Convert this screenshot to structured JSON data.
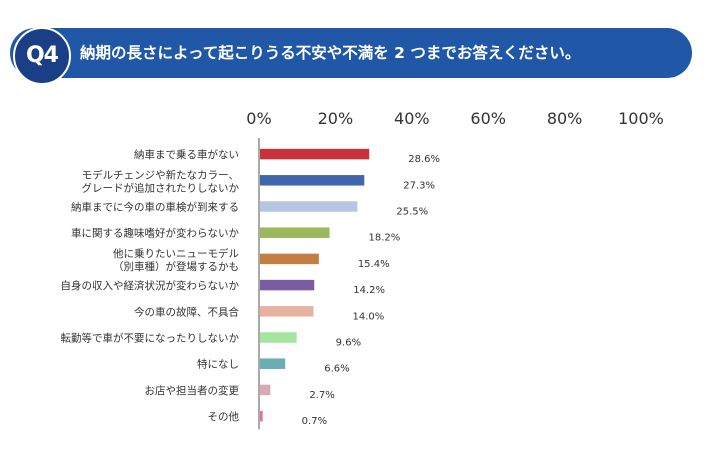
{
  "header": {
    "badge": "Q4",
    "question": "納期の長さによって起こりうる不安や不満を 2 つまでお答えください。"
  },
  "chart_data": {
    "type": "bar",
    "orientation": "horizontal",
    "title": "納期の長さによって起こりうる不安や不満を 2 つまでお答えください。",
    "categories": [
      [
        "納車まで乗る車がない"
      ],
      [
        "モデルチェンジや新たなカラー、",
        "グレードが追加されたりしないか"
      ],
      [
        "納車までに今の車の車検が到来する"
      ],
      [
        "車に関する趣味嗜好が変わらないか"
      ],
      [
        "他に乗りたいニューモデル",
        "（別車種）が登場するかも"
      ],
      [
        "自身の収入や経済状況が変わらないか"
      ],
      [
        "今の車の故障、不具合"
      ],
      [
        "転勤等で車が不要になったりしないか"
      ],
      [
        "特になし"
      ],
      [
        "お店や担当者の変更"
      ],
      [
        "その他"
      ]
    ],
    "values": [
      28.6,
      27.3,
      25.5,
      18.2,
      15.4,
      14.2,
      14.0,
      9.6,
      6.6,
      2.7,
      0.7
    ],
    "value_labels": [
      "28.6%",
      "27.3%",
      "25.5%",
      "18.2%",
      "15.4%",
      "14.2%",
      "14.0%",
      "9.6%",
      "6.6%",
      "2.7%",
      "0.7%"
    ],
    "colors": [
      "#c8323a",
      "#3f66ac",
      "#b5c6e2",
      "#9bb85c",
      "#c47d43",
      "#7a5ca3",
      "#e7b3a0",
      "#a4e5a0",
      "#6aaeb2",
      "#d9aab6",
      "#e9708f"
    ],
    "xlim": [
      0,
      100
    ],
    "xticks": [
      "0%",
      "20%",
      "40%",
      "60%",
      "80%",
      "100%"
    ],
    "xtick_values": [
      0,
      20,
      40,
      60,
      80,
      100
    ],
    "grid": false
  }
}
